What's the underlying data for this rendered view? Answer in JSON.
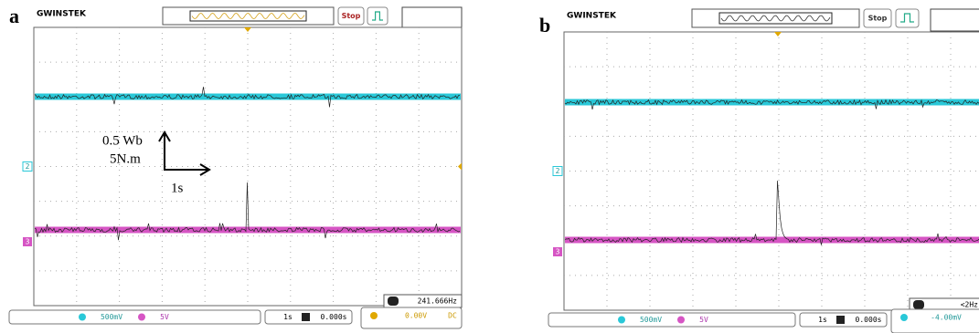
{
  "panels": [
    {
      "label": "a",
      "brand": "GWINSTEK",
      "button": "Stop",
      "markers": [
        "2",
        "3"
      ],
      "annotations": [
        "0.5 Wb",
        "5N.m",
        "1s"
      ],
      "readout": "241.666Hz",
      "status": {
        "ch2": "500mV",
        "ch3": "5V",
        "timebase": "1s",
        "delay": "0.000s",
        "trigger": "0.00V",
        "coupling": "DC"
      }
    },
    {
      "label": "b",
      "brand": "GWINSTEK",
      "button": "Stop",
      "markers": [
        "2",
        "3"
      ],
      "readout": "<2Hz",
      "status": {
        "ch2": "500mV",
        "ch3": "5V",
        "timebase": "1s",
        "delay": "0.000s",
        "trigger": "-4.00mV"
      }
    }
  ]
}
